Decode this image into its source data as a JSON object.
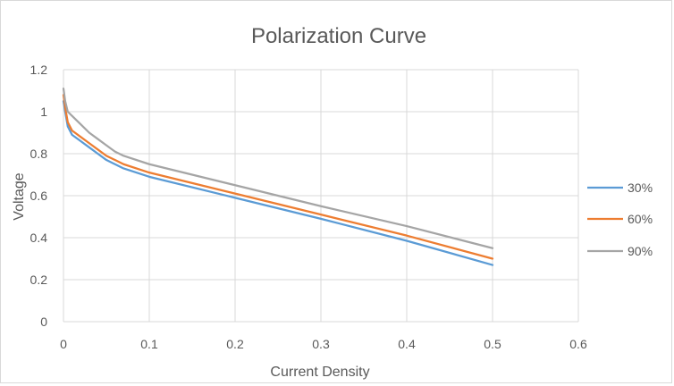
{
  "chart_data": {
    "type": "line",
    "title": "Polarization Curve",
    "xlabel": "Current Density",
    "ylabel": "Voltage",
    "xlim": [
      0,
      0.6
    ],
    "ylim": [
      0,
      1.2
    ],
    "x_ticks": [
      "0",
      "0.1",
      "0.2",
      "0.3",
      "0.4",
      "0.5",
      "0.6"
    ],
    "y_ticks": [
      "0",
      "0.2",
      "0.4",
      "0.6",
      "0.8",
      "1",
      "1.2"
    ],
    "grid": true,
    "legend_position": "right",
    "series": [
      {
        "name": "30%",
        "color": "#5b9bd5",
        "x": [
          0,
          0.002,
          0.005,
          0.01,
          0.02,
          0.03,
          0.04,
          0.05,
          0.06,
          0.07,
          0.1,
          0.2,
          0.3,
          0.4,
          0.5
        ],
        "y": [
          1.05,
          1.0,
          0.93,
          0.89,
          0.86,
          0.83,
          0.8,
          0.77,
          0.75,
          0.73,
          0.69,
          0.59,
          0.49,
          0.385,
          0.27
        ]
      },
      {
        "name": "60%",
        "color": "#ed7d31",
        "x": [
          0,
          0.002,
          0.005,
          0.01,
          0.02,
          0.03,
          0.04,
          0.05,
          0.06,
          0.07,
          0.1,
          0.2,
          0.3,
          0.4,
          0.5
        ],
        "y": [
          1.08,
          1.02,
          0.95,
          0.91,
          0.88,
          0.85,
          0.82,
          0.79,
          0.77,
          0.75,
          0.71,
          0.61,
          0.51,
          0.41,
          0.3
        ]
      },
      {
        "name": "90%",
        "color": "#a5a5a5",
        "x": [
          0,
          0.002,
          0.005,
          0.01,
          0.02,
          0.03,
          0.04,
          0.05,
          0.06,
          0.07,
          0.1,
          0.2,
          0.3,
          0.4,
          0.5
        ],
        "y": [
          1.11,
          1.05,
          1.0,
          0.98,
          0.94,
          0.9,
          0.87,
          0.84,
          0.81,
          0.79,
          0.75,
          0.65,
          0.55,
          0.455,
          0.35
        ]
      }
    ]
  }
}
